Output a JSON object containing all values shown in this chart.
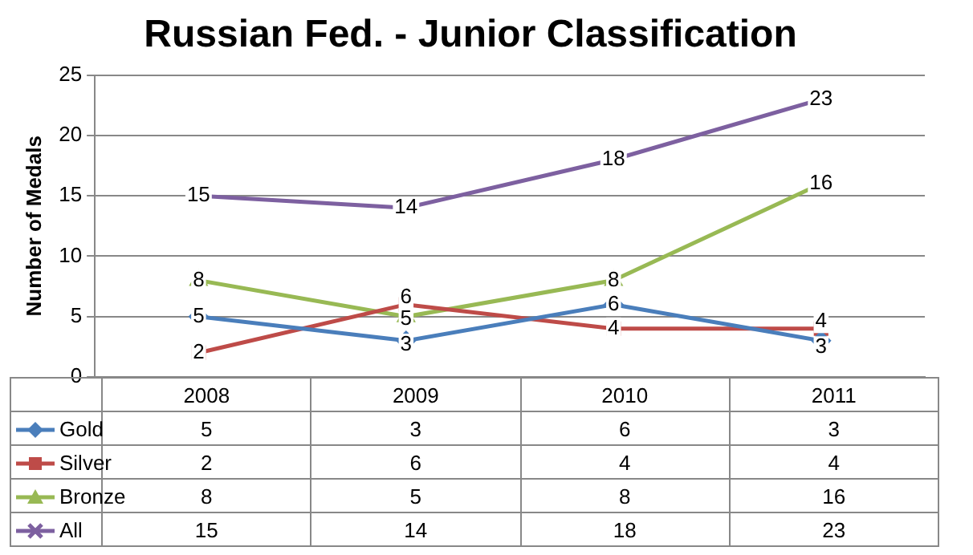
{
  "chart_data": {
    "type": "line",
    "title": "Russian Fed. - Junior Classification",
    "ylabel": "Number of Medals",
    "categories": [
      "2008",
      "2009",
      "2010",
      "2011"
    ],
    "series": [
      {
        "name": "Gold",
        "color": "#4a7ebb",
        "marker": "diamond",
        "values": [
          5,
          3,
          6,
          3
        ]
      },
      {
        "name": "Silver",
        "color": "#be4b48",
        "marker": "square",
        "values": [
          2,
          6,
          4,
          4
        ]
      },
      {
        "name": "Bronze",
        "color": "#98b954",
        "marker": "triangle",
        "values": [
          8,
          5,
          8,
          16
        ]
      },
      {
        "name": "All",
        "color": "#7d60a0",
        "marker": "cross",
        "values": [
          15,
          14,
          18,
          23
        ]
      }
    ],
    "annotations": [
      {
        "text": "5",
        "x": "2008",
        "y": 5
      },
      {
        "text": "3",
        "x": "2009",
        "y": 3
      },
      {
        "text": "6",
        "x": "2010",
        "y": 6
      },
      {
        "text": "3",
        "x": "2011",
        "y": 3
      },
      {
        "text": "2",
        "x": "2008",
        "y": 2
      },
      {
        "text": "6",
        "x": "2009",
        "y": 6
      },
      {
        "text": "4",
        "x": "2010",
        "y": 4
      },
      {
        "text": "4",
        "x": "2011",
        "y": 4
      },
      {
        "text": "8",
        "x": "2008",
        "y": 8
      },
      {
        "text": "5",
        "x": "2009",
        "y": 5
      },
      {
        "text": "8",
        "x": "2010",
        "y": 8
      },
      {
        "text": "16",
        "x": "2011",
        "y": 16
      },
      {
        "text": "15",
        "x": "2008",
        "y": 15
      },
      {
        "text": "14",
        "x": "2009",
        "y": 14
      },
      {
        "text": "18",
        "x": "2010",
        "y": 18
      },
      {
        "text": "23",
        "x": "2011",
        "y": 23
      }
    ],
    "ylim": [
      0,
      25
    ],
    "yticks": [
      0,
      5,
      10,
      15,
      20,
      25
    ],
    "grid": "y",
    "legend": "bottom",
    "data_labels": true
  }
}
